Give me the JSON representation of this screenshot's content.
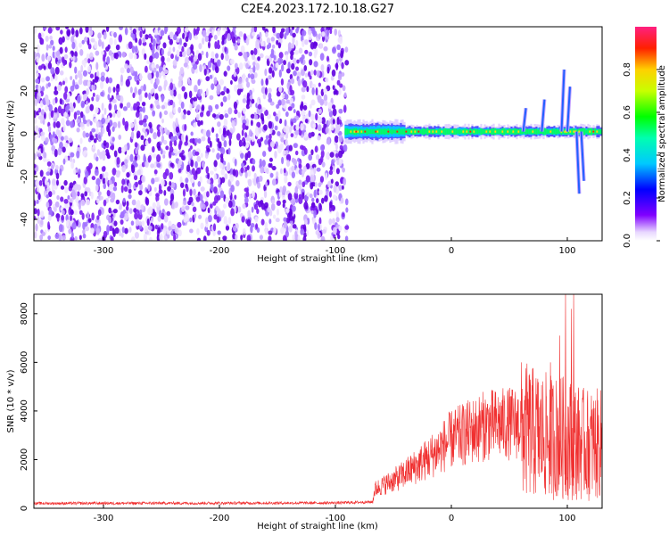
{
  "title": "C2E4.2023.172.10.18.G27",
  "chart_data": [
    {
      "type": "heatmap",
      "xlabel": "Height of straight line (km)",
      "ylabel": "Frequency (Hz)",
      "xlim": [
        -360,
        130
      ],
      "ylim": [
        -50,
        50
      ],
      "x_ticks": [
        "-300",
        "-200",
        "-100",
        "0",
        "100"
      ],
      "y_ticks": [
        "-40",
        "-20",
        "0",
        "20",
        "40"
      ],
      "colorbar": {
        "label": "Normalized spectral amplitude",
        "range": [
          0,
          1
        ],
        "ticks": [
          "0.0",
          "0.2",
          "0.4",
          "0.6",
          "0.8"
        ],
        "colormap": "rainbow (white-purple-blue-cyan-green-yellow-red-pink)"
      },
      "noise_region_x": [
        -360,
        -90
      ],
      "signal_band": {
        "x_start": -92,
        "x_end": 130,
        "center_freq_hz": 1,
        "note": "narrow high-amplitude band near 0 Hz with broadening spikes near 60-120 km"
      },
      "grid": false
    },
    {
      "type": "line",
      "xlabel": "Height of straight line (km)",
      "ylabel": "SNR (10 * v/v)",
      "xlim": [
        -360,
        130
      ],
      "ylim": [
        0,
        8800
      ],
      "x_ticks": [
        "-300",
        "-200",
        "-100",
        "0",
        "100"
      ],
      "y_ticks": [
        "0",
        "2000",
        "4000",
        "6000",
        "8000"
      ],
      "color": "#f03030",
      "profile": [
        {
          "x": -360,
          "y": 200
        },
        {
          "x": -100,
          "y": 220
        },
        {
          "x": -68,
          "y": 260
        },
        {
          "x": -66,
          "y": 800
        },
        {
          "x": -45,
          "y": 1300
        },
        {
          "x": -20,
          "y": 2100
        },
        {
          "x": 0,
          "y": 2900
        },
        {
          "x": 30,
          "y": 3500
        },
        {
          "x": 60,
          "y": 3600
        },
        {
          "x": 80,
          "y": 3300
        },
        {
          "x": 100,
          "y": 3200
        },
        {
          "x": 115,
          "y": 2900
        },
        {
          "x": 130,
          "y": 2900
        }
      ],
      "peaks": [
        {
          "x": 98,
          "y": 8800
        },
        {
          "x": 105,
          "y": 8800
        },
        {
          "x": 103,
          "y": 8200
        },
        {
          "x": 93,
          "y": 7100
        },
        {
          "x": 85,
          "y": 6000
        }
      ],
      "grid": false
    }
  ]
}
